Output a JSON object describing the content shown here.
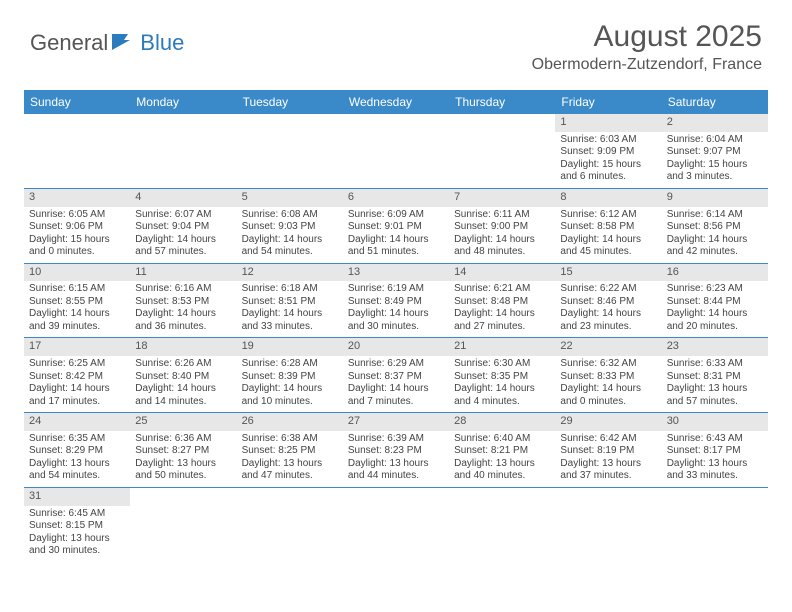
{
  "brand": {
    "part1": "General",
    "part2": "Blue"
  },
  "title": "August 2025",
  "location": "Obermodern-Zutzendorf, France",
  "colors": {
    "header_bg": "#3a8ac9",
    "daynum_bg": "#e7e7e7",
    "text": "#444444",
    "brand_blue": "#2b7bbd"
  },
  "day_labels": [
    "Sunday",
    "Monday",
    "Tuesday",
    "Wednesday",
    "Thursday",
    "Friday",
    "Saturday"
  ],
  "weeks": [
    [
      null,
      null,
      null,
      null,
      null,
      {
        "n": "1",
        "sr": "6:03 AM",
        "ss": "9:09 PM",
        "dl": "15 hours and 6 minutes."
      },
      {
        "n": "2",
        "sr": "6:04 AM",
        "ss": "9:07 PM",
        "dl": "15 hours and 3 minutes."
      }
    ],
    [
      {
        "n": "3",
        "sr": "6:05 AM",
        "ss": "9:06 PM",
        "dl": "15 hours and 0 minutes."
      },
      {
        "n": "4",
        "sr": "6:07 AM",
        "ss": "9:04 PM",
        "dl": "14 hours and 57 minutes."
      },
      {
        "n": "5",
        "sr": "6:08 AM",
        "ss": "9:03 PM",
        "dl": "14 hours and 54 minutes."
      },
      {
        "n": "6",
        "sr": "6:09 AM",
        "ss": "9:01 PM",
        "dl": "14 hours and 51 minutes."
      },
      {
        "n": "7",
        "sr": "6:11 AM",
        "ss": "9:00 PM",
        "dl": "14 hours and 48 minutes."
      },
      {
        "n": "8",
        "sr": "6:12 AM",
        "ss": "8:58 PM",
        "dl": "14 hours and 45 minutes."
      },
      {
        "n": "9",
        "sr": "6:14 AM",
        "ss": "8:56 PM",
        "dl": "14 hours and 42 minutes."
      }
    ],
    [
      {
        "n": "10",
        "sr": "6:15 AM",
        "ss": "8:55 PM",
        "dl": "14 hours and 39 minutes."
      },
      {
        "n": "11",
        "sr": "6:16 AM",
        "ss": "8:53 PM",
        "dl": "14 hours and 36 minutes."
      },
      {
        "n": "12",
        "sr": "6:18 AM",
        "ss": "8:51 PM",
        "dl": "14 hours and 33 minutes."
      },
      {
        "n": "13",
        "sr": "6:19 AM",
        "ss": "8:49 PM",
        "dl": "14 hours and 30 minutes."
      },
      {
        "n": "14",
        "sr": "6:21 AM",
        "ss": "8:48 PM",
        "dl": "14 hours and 27 minutes."
      },
      {
        "n": "15",
        "sr": "6:22 AM",
        "ss": "8:46 PM",
        "dl": "14 hours and 23 minutes."
      },
      {
        "n": "16",
        "sr": "6:23 AM",
        "ss": "8:44 PM",
        "dl": "14 hours and 20 minutes."
      }
    ],
    [
      {
        "n": "17",
        "sr": "6:25 AM",
        "ss": "8:42 PM",
        "dl": "14 hours and 17 minutes."
      },
      {
        "n": "18",
        "sr": "6:26 AM",
        "ss": "8:40 PM",
        "dl": "14 hours and 14 minutes."
      },
      {
        "n": "19",
        "sr": "6:28 AM",
        "ss": "8:39 PM",
        "dl": "14 hours and 10 minutes."
      },
      {
        "n": "20",
        "sr": "6:29 AM",
        "ss": "8:37 PM",
        "dl": "14 hours and 7 minutes."
      },
      {
        "n": "21",
        "sr": "6:30 AM",
        "ss": "8:35 PM",
        "dl": "14 hours and 4 minutes."
      },
      {
        "n": "22",
        "sr": "6:32 AM",
        "ss": "8:33 PM",
        "dl": "14 hours and 0 minutes."
      },
      {
        "n": "23",
        "sr": "6:33 AM",
        "ss": "8:31 PM",
        "dl": "13 hours and 57 minutes."
      }
    ],
    [
      {
        "n": "24",
        "sr": "6:35 AM",
        "ss": "8:29 PM",
        "dl": "13 hours and 54 minutes."
      },
      {
        "n": "25",
        "sr": "6:36 AM",
        "ss": "8:27 PM",
        "dl": "13 hours and 50 minutes."
      },
      {
        "n": "26",
        "sr": "6:38 AM",
        "ss": "8:25 PM",
        "dl": "13 hours and 47 minutes."
      },
      {
        "n": "27",
        "sr": "6:39 AM",
        "ss": "8:23 PM",
        "dl": "13 hours and 44 minutes."
      },
      {
        "n": "28",
        "sr": "6:40 AM",
        "ss": "8:21 PM",
        "dl": "13 hours and 40 minutes."
      },
      {
        "n": "29",
        "sr": "6:42 AM",
        "ss": "8:19 PM",
        "dl": "13 hours and 37 minutes."
      },
      {
        "n": "30",
        "sr": "6:43 AM",
        "ss": "8:17 PM",
        "dl": "13 hours and 33 minutes."
      }
    ],
    [
      {
        "n": "31",
        "sr": "6:45 AM",
        "ss": "8:15 PM",
        "dl": "13 hours and 30 minutes."
      },
      null,
      null,
      null,
      null,
      null,
      null
    ]
  ],
  "labels": {
    "sunrise": "Sunrise: ",
    "sunset": "Sunset: ",
    "daylight": "Daylight: "
  }
}
